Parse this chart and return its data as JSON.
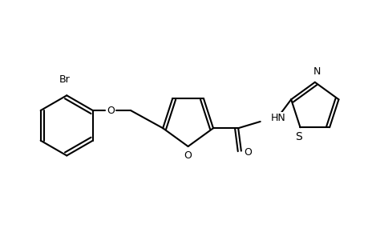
{
  "background_color": "#ffffff",
  "line_color": "#000000",
  "line_width": 1.5,
  "font_size": 9,
  "figsize": [
    4.6,
    3.0
  ],
  "dpi": 100,
  "xlim": [
    0,
    10
  ],
  "ylim": [
    0,
    6.5
  ]
}
